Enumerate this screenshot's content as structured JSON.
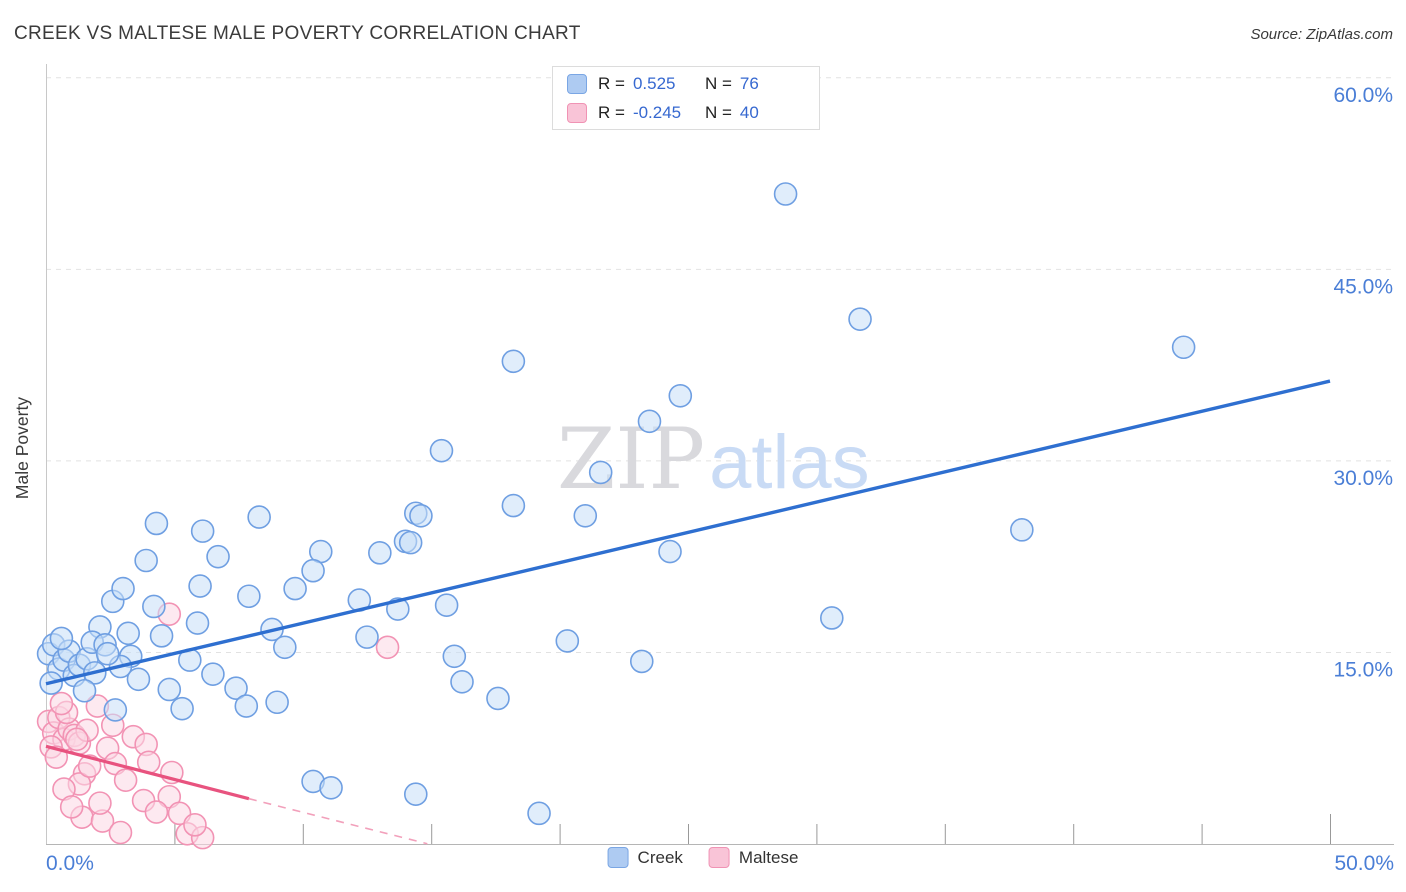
{
  "title": "CREEK VS MALTESE MALE POVERTY CORRELATION CHART",
  "source": "Source: ZipAtlas.com",
  "watermark": {
    "part1": "ZIP",
    "part2": "atlas"
  },
  "legend_box": {
    "rows": [
      {
        "series": "Creek",
        "r_label": "R =",
        "r_value": "0.525",
        "n_label": "N =",
        "n_value": "76"
      },
      {
        "series": "Maltese",
        "r_label": "R =",
        "r_value": "-0.245",
        "n_label": "N =",
        "n_value": "40"
      }
    ]
  },
  "bottom_legend": {
    "creek_label": "Creek",
    "maltese_label": "Maltese"
  },
  "colors": {
    "creek_fill": "rgba(199,222,248,0.55)",
    "creek_stroke": "#6f9fe2",
    "maltese_fill": "rgba(252,215,228,0.55)",
    "maltese_stroke": "#f293b4",
    "creek_trend": "#2e6fd0",
    "maltese_trend": "#e8537f",
    "maltese_trend_dash": "#f2a0bb",
    "grid": "#e2e2e2",
    "axis": "#b5b5b5",
    "tick": "#999999",
    "tick_label": "#4a7ed6",
    "watermark_zip": "#d9d9dd",
    "watermark_atlas": "#c9dbf5",
    "axis_title": "#3b3b3b"
  },
  "chart_data": {
    "type": "scatter",
    "title": "CREEK VS MALTESE MALE POVERTY CORRELATION CHART",
    "xlabel": "",
    "ylabel": "Male Poverty",
    "x_range_pct": [
      0,
      50
    ],
    "y_range_pct": [
      0,
      62
    ],
    "grid": "horizontal-dashed",
    "x_tick_step_pct": 5,
    "x_tick_labels": [
      {
        "value": 0,
        "label": "0.0%"
      },
      {
        "value": 50,
        "label": "50.0%"
      }
    ],
    "y_tick_labels": [
      {
        "value": 60,
        "label": "60.0%"
      },
      {
        "value": 45,
        "label": "45.0%"
      },
      {
        "value": 30,
        "label": "30.0%"
      },
      {
        "value": 15,
        "label": "15.0%"
      }
    ],
    "mapping": {
      "x0": 46,
      "x_per_pct": 25.68,
      "y0": 844,
      "y_per_pct": 12.77,
      "x_axis_end": 1394,
      "point_radius": 11
    },
    "series": [
      {
        "name": "Creek",
        "r": 0.525,
        "n": 76,
        "points": [
          [
            0.1,
            14.9
          ],
          [
            0.3,
            15.6
          ],
          [
            0.5,
            13.7
          ],
          [
            0.7,
            14.4
          ],
          [
            0.9,
            15.1
          ],
          [
            1.1,
            13.2
          ],
          [
            1.3,
            14.0
          ],
          [
            0.2,
            12.6
          ],
          [
            1.6,
            14.5
          ],
          [
            0.6,
            16.1
          ],
          [
            1.9,
            13.4
          ],
          [
            2.1,
            17.0
          ],
          [
            1.8,
            15.8
          ],
          [
            2.3,
            15.6
          ],
          [
            2.6,
            19.0
          ],
          [
            3.0,
            20.0
          ],
          [
            4.2,
            18.6
          ],
          [
            3.3,
            14.7
          ],
          [
            4.5,
            16.3
          ],
          [
            5.6,
            14.4
          ],
          [
            6.5,
            13.3
          ],
          [
            7.4,
            12.2
          ],
          [
            7.8,
            10.8
          ],
          [
            2.7,
            10.5
          ],
          [
            9.0,
            11.1
          ],
          [
            8.3,
            25.6
          ],
          [
            6.1,
            24.5
          ],
          [
            4.3,
            25.1
          ],
          [
            3.9,
            22.2
          ],
          [
            6.7,
            22.5
          ],
          [
            10.7,
            22.9
          ],
          [
            6.0,
            20.2
          ],
          [
            7.9,
            19.4
          ],
          [
            9.7,
            20.0
          ],
          [
            10.4,
            21.4
          ],
          [
            13.0,
            22.8
          ],
          [
            14.0,
            23.7
          ],
          [
            14.2,
            23.6
          ],
          [
            14.4,
            25.9
          ],
          [
            14.6,
            25.7
          ],
          [
            12.2,
            19.1
          ],
          [
            13.7,
            18.4
          ],
          [
            15.6,
            18.7
          ],
          [
            15.4,
            30.8
          ],
          [
            18.2,
            26.5
          ],
          [
            21.0,
            25.7
          ],
          [
            21.6,
            29.1
          ],
          [
            24.3,
            22.9
          ],
          [
            18.2,
            37.8
          ],
          [
            23.5,
            33.1
          ],
          [
            24.7,
            35.1
          ],
          [
            28.8,
            50.9
          ],
          [
            31.7,
            41.1
          ],
          [
            44.3,
            38.9
          ],
          [
            38.0,
            24.6
          ],
          [
            30.6,
            17.7
          ],
          [
            20.3,
            15.9
          ],
          [
            15.9,
            14.7
          ],
          [
            23.2,
            14.3
          ],
          [
            16.2,
            12.7
          ],
          [
            17.6,
            11.4
          ],
          [
            14.4,
            3.9
          ],
          [
            19.2,
            2.4
          ],
          [
            10.4,
            4.9
          ],
          [
            11.1,
            4.4
          ],
          [
            5.3,
            10.6
          ],
          [
            4.8,
            12.1
          ],
          [
            3.6,
            12.9
          ],
          [
            2.9,
            13.9
          ],
          [
            1.5,
            12.0
          ],
          [
            2.4,
            14.9
          ],
          [
            3.2,
            16.5
          ],
          [
            5.9,
            17.3
          ],
          [
            8.8,
            16.8
          ],
          [
            12.5,
            16.2
          ],
          [
            9.3,
            15.4
          ]
        ],
        "trend": {
          "start_pct": [
            0,
            12.55
          ],
          "end_pct": [
            50,
            36.25
          ]
        }
      },
      {
        "name": "Maltese",
        "r": -0.245,
        "n": 40,
        "points": [
          [
            0.1,
            9.6
          ],
          [
            0.3,
            8.7
          ],
          [
            0.5,
            9.9
          ],
          [
            0.7,
            8.2
          ],
          [
            0.9,
            9.0
          ],
          [
            1.1,
            8.5
          ],
          [
            0.2,
            7.6
          ],
          [
            1.3,
            7.9
          ],
          [
            0.4,
            6.8
          ],
          [
            1.6,
            8.9
          ],
          [
            0.8,
            10.3
          ],
          [
            1.2,
            8.2
          ],
          [
            1.5,
            5.5
          ],
          [
            1.3,
            4.7
          ],
          [
            0.7,
            4.3
          ],
          [
            2.4,
            7.5
          ],
          [
            2.7,
            6.3
          ],
          [
            3.4,
            8.4
          ],
          [
            3.9,
            7.8
          ],
          [
            4.0,
            6.4
          ],
          [
            4.9,
            5.6
          ],
          [
            4.8,
            3.7
          ],
          [
            3.8,
            3.4
          ],
          [
            4.3,
            2.5
          ],
          [
            5.2,
            2.4
          ],
          [
            1.4,
            2.1
          ],
          [
            2.2,
            1.8
          ],
          [
            2.9,
            0.9
          ],
          [
            5.5,
            0.8
          ],
          [
            6.1,
            0.5
          ],
          [
            4.8,
            18.0
          ],
          [
            13.3,
            15.4
          ],
          [
            2.0,
            10.8
          ],
          [
            1.7,
            6.1
          ],
          [
            2.6,
            9.3
          ],
          [
            0.6,
            11.0
          ],
          [
            3.1,
            5.0
          ],
          [
            2.1,
            3.2
          ],
          [
            1.0,
            2.9
          ],
          [
            5.8,
            1.5
          ]
        ],
        "trend": {
          "start_pct": [
            0,
            7.65
          ],
          "end_pct": [
            7.9,
            3.55
          ]
        },
        "trend_extension_dashed": {
          "start_pct": [
            7.9,
            3.55
          ],
          "end_pct": [
            14.85,
            0.02
          ]
        }
      }
    ]
  }
}
